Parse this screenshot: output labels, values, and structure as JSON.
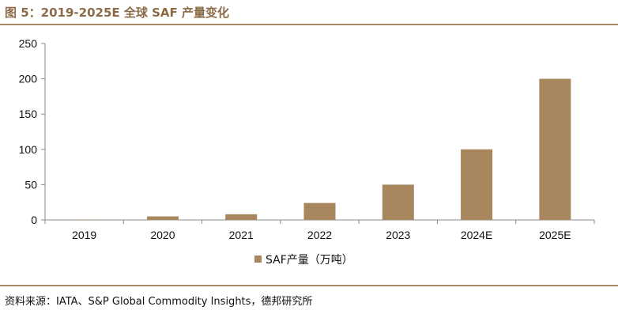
{
  "figure": {
    "title": "图 5：2019-2025E 全球 SAF 产量变化",
    "source": "资料来源：IATA、S&P Global Commodity Insights，德邦研究所"
  },
  "colors": {
    "bar": "#a8865e",
    "rule": "#a88a67",
    "title": "#8b6b47",
    "axis": "#888888"
  },
  "chart_data": {
    "type": "bar",
    "categories": [
      "2019",
      "2020",
      "2021",
      "2022",
      "2023",
      "2024E",
      "2025E"
    ],
    "series": [
      {
        "name": "SAF产量（万吨）",
        "values": [
          0.5,
          5,
          8,
          24,
          50,
          100,
          200
        ]
      }
    ],
    "title": "",
    "xlabel": "",
    "ylabel": "",
    "ylim": [
      0,
      250
    ],
    "yticks": [
      0,
      50,
      100,
      150,
      200,
      250
    ],
    "grid": false,
    "legend": "bottom-center"
  }
}
